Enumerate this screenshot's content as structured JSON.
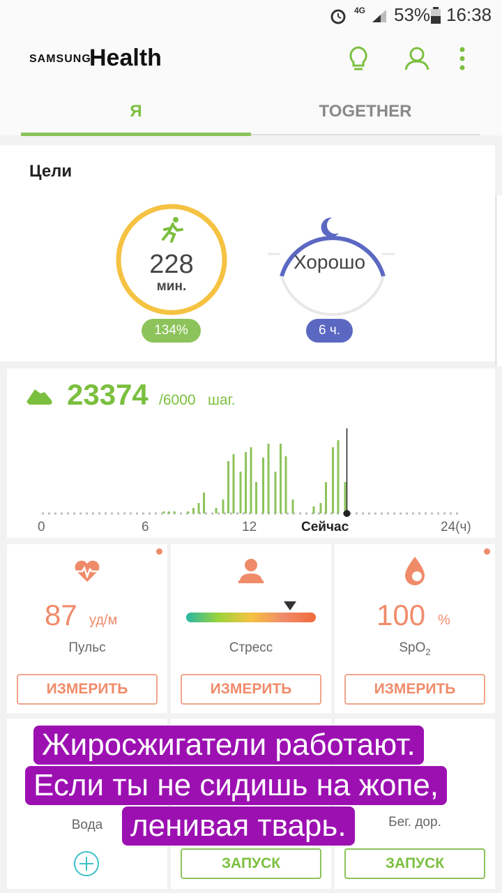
{
  "status_bar": {
    "alarm_icon": "alarm-icon",
    "network": "4G",
    "battery": "53%",
    "time": "16:38"
  },
  "header": {
    "logo_small": "SAMSUNG",
    "logo_big": "Health",
    "icons": [
      "lightbulb-icon",
      "profile-icon",
      "more-icon"
    ]
  },
  "tabs": [
    {
      "label": "Я",
      "active": true
    },
    {
      "label": "TOGETHER",
      "active": false
    }
  ],
  "goals": {
    "title": "Цели",
    "activity": {
      "value": "228",
      "unit": "мин.",
      "badge": "134%",
      "color": "#f5c242"
    },
    "sleep": {
      "value": "Хорошо",
      "badge": "6 ч.",
      "color": "#5b68c2"
    }
  },
  "steps": {
    "value": "23374",
    "goal": "/6000",
    "unit": "шаг.",
    "axis": [
      "0",
      "6",
      "12",
      "Сейчас",
      "24(ч)"
    ],
    "color": "#8cc35a"
  },
  "chart_data": {
    "type": "bar",
    "series": [
      {
        "values": [
          {
            "x": 7.0,
            "y": 3
          },
          {
            "x": 7.3,
            "y": 3
          },
          {
            "x": 7.6,
            "y": 3
          },
          {
            "x": 8.4,
            "y": 3
          },
          {
            "x": 8.7,
            "y": 8
          },
          {
            "x": 9.0,
            "y": 15
          },
          {
            "x": 9.3,
            "y": 30
          },
          {
            "x": 10.0,
            "y": 8
          },
          {
            "x": 10.4,
            "y": 20
          },
          {
            "x": 10.7,
            "y": 75
          },
          {
            "x": 11.0,
            "y": 85
          },
          {
            "x": 11.4,
            "y": 60
          },
          {
            "x": 11.7,
            "y": 88
          },
          {
            "x": 12.0,
            "y": 95
          },
          {
            "x": 12.3,
            "y": 45
          },
          {
            "x": 12.7,
            "y": 80
          },
          {
            "x": 13.0,
            "y": 100
          },
          {
            "x": 13.4,
            "y": 60
          },
          {
            "x": 13.7,
            "y": 100
          },
          {
            "x": 14.0,
            "y": 82
          },
          {
            "x": 14.4,
            "y": 20
          },
          {
            "x": 15.6,
            "y": 10
          },
          {
            "x": 16.0,
            "y": 15
          },
          {
            "x": 16.3,
            "y": 45
          },
          {
            "x": 16.7,
            "y": 95
          },
          {
            "x": 17.0,
            "y": 105
          },
          {
            "x": 17.4,
            "y": 45
          }
        ]
      }
    ],
    "xlim": [
      0,
      24
    ],
    "xticks": [
      "0",
      "6",
      "12",
      "Сейчас",
      "24(ч)"
    ],
    "now": 17.5
  },
  "pulse": {
    "value": "87",
    "unit": "уд/м",
    "label": "Пульс",
    "button": "ИЗМЕРИТЬ"
  },
  "stress": {
    "label": "Стресс",
    "button": "ИЗМЕРИТЬ",
    "level": 0.8
  },
  "spo2": {
    "value": "100",
    "unit": "%",
    "label": "SpO",
    "sub": "2",
    "button": "ИЗМЕРИТЬ"
  },
  "bottom_tiles": {
    "water_label": "Вода",
    "treadmill_label": "Бег. дор.",
    "start_button": "ЗАПУСК",
    "start_button_2": "ЗАПУСК"
  },
  "overlay": {
    "line1": "Жиросжигатели работают.",
    "line2": "Если ты не сидишь на жопе,",
    "line3": "ленивая тварь."
  },
  "colors": {
    "accent": "#8cc35a",
    "coral": "#f08b6a",
    "overlay": "#9c10b2"
  }
}
